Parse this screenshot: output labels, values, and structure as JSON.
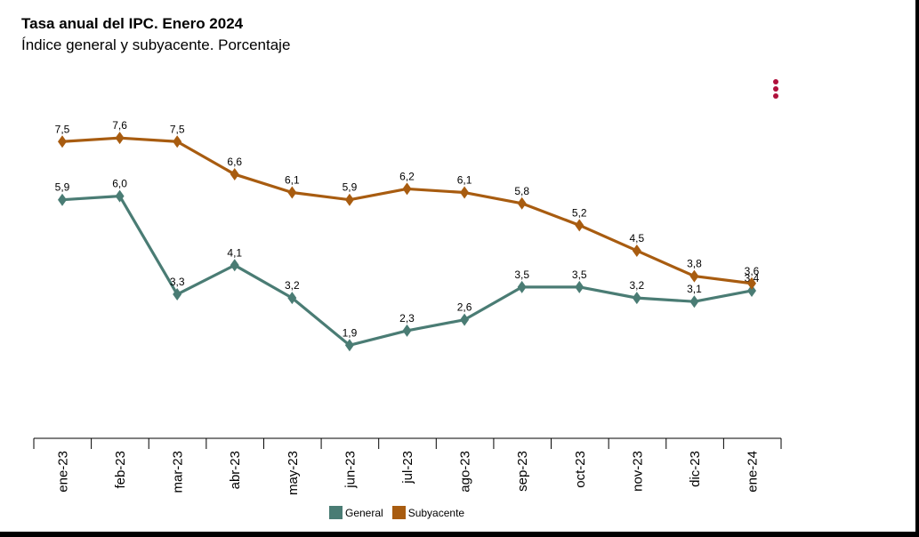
{
  "header": {
    "title": "Tasa anual del IPC. Enero 2024",
    "subtitle": "Índice general y subyacente. Porcentaje"
  },
  "menu": {
    "icon": "vertical-dots-icon",
    "color": "#b0103c"
  },
  "chart_data": {
    "type": "line",
    "categories": [
      "ene-23",
      "feb-23",
      "mar-23",
      "abr-23",
      "may-23",
      "jun-23",
      "jul-23",
      "ago-23",
      "sep-23",
      "oct-23",
      "nov-23",
      "dic-23",
      "ene-24"
    ],
    "series": [
      {
        "name": "General",
        "color": "#4a7c74",
        "values": [
          5.9,
          6.0,
          3.3,
          4.1,
          3.2,
          1.9,
          2.3,
          2.6,
          3.5,
          3.5,
          3.2,
          3.1,
          3.4
        ],
        "labels": [
          "5,9",
          "6,0",
          "3,3",
          "4,1",
          "3,2",
          "1,9",
          "2,3",
          "2,6",
          "3,5",
          "3,5",
          "3,2",
          "3,1",
          "3,4"
        ]
      },
      {
        "name": "Subyacente",
        "color": "#a85c10",
        "values": [
          7.5,
          7.6,
          7.5,
          6.6,
          6.1,
          5.9,
          6.2,
          6.1,
          5.8,
          5.2,
          4.5,
          3.8,
          3.6
        ],
        "labels": [
          "7,5",
          "7,6",
          "7,5",
          "6,6",
          "6,1",
          "5,9",
          "6,2",
          "6,1",
          "5,8",
          "5,2",
          "4,5",
          "3,8",
          "3,6"
        ]
      }
    ],
    "marker": "diamond",
    "data_labels": true,
    "grid": false,
    "legend_position": "bottom"
  }
}
